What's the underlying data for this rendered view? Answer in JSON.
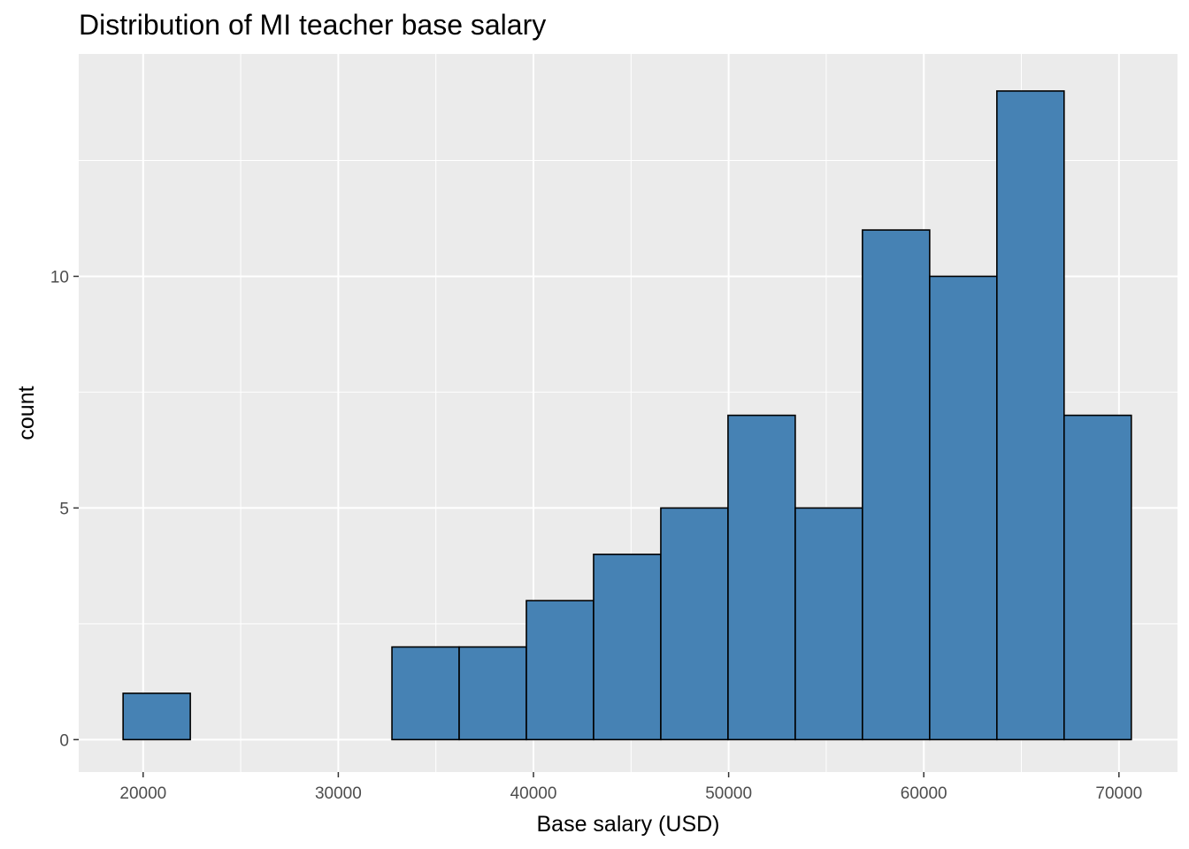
{
  "chart_data": {
    "type": "bar",
    "title": "Distribution of MI teacher base salary",
    "xlabel": "Base salary (USD)",
    "ylabel": "count",
    "xlim": [
      16700,
      73000
    ],
    "ylim": [
      -0.7,
      14.8
    ],
    "x_ticks": [
      20000,
      30000,
      40000,
      50000,
      60000,
      70000
    ],
    "y_ticks": [
      0,
      5,
      10
    ],
    "bin_edges": [
      18973,
      22417,
      25861,
      29305,
      32749,
      36193,
      39637,
      43081,
      46525,
      49969,
      53413,
      56857,
      60301,
      63745,
      67189,
      70633
    ],
    "values": [
      1,
      0,
      0,
      0,
      2,
      2,
      3,
      4,
      5,
      7,
      5,
      11,
      10,
      14,
      7
    ],
    "grid": true,
    "colors": {
      "fill": "#4682b4",
      "outline": "#000000",
      "panel": "#ebebeb",
      "grid": "#ffffff"
    }
  }
}
